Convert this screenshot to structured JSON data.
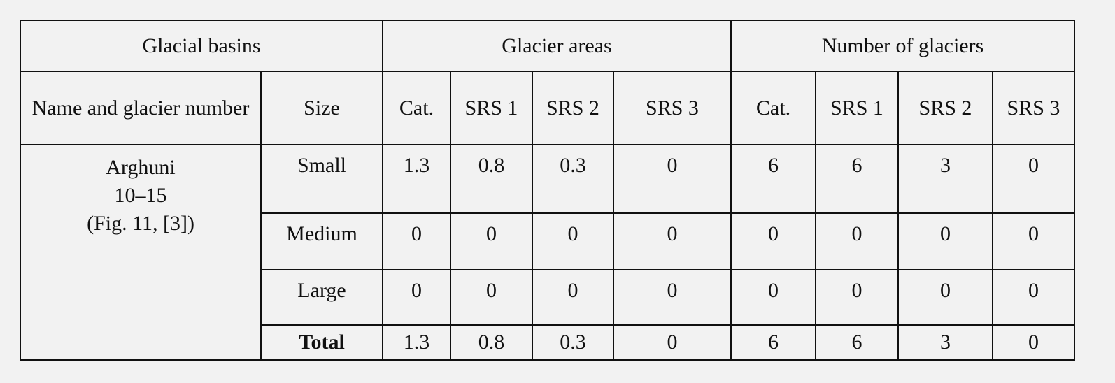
{
  "table": {
    "header": {
      "groups": [
        "Glacial basins",
        "Glacier areas",
        "Number of glaciers"
      ],
      "columns": [
        "Name and glacier number",
        "Size",
        "Cat.",
        "SRS 1",
        "SRS 2",
        "SRS 3",
        "Cat.",
        "SRS 1",
        "SRS 2",
        "SRS 3"
      ]
    },
    "basin": {
      "name": "Arghuni",
      "numbers": "10–15",
      "reference": "(Fig. 11, [3])"
    },
    "rows": [
      [
        "Small",
        1.3,
        0.8,
        0.3,
        0,
        6,
        6,
        3,
        0
      ],
      [
        "Medium",
        0,
        0,
        0,
        0,
        0,
        0,
        0,
        0
      ],
      [
        "Large",
        0,
        0,
        0,
        0,
        0,
        0,
        0,
        0
      ],
      [
        "Total",
        1.3,
        0.8,
        0.3,
        0,
        6,
        6,
        3,
        0
      ]
    ]
  }
}
